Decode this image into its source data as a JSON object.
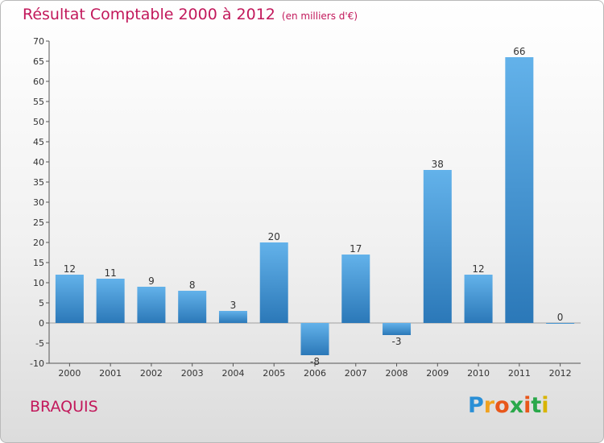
{
  "header": {
    "title": "Résultat Comptable 2000 à 2012",
    "subtitle": "(en milliers d'€)"
  },
  "footer": {
    "commune": "BRAQUIS",
    "logo": "Proxiti"
  },
  "colors": {
    "accent": "#c2185b",
    "bar_top": "#63b2ea",
    "bar_bottom": "#2b78b8"
  },
  "chart_data": {
    "type": "bar",
    "title": "Résultat Comptable 2000 à 2012",
    "xlabel": "",
    "ylabel": "",
    "categories": [
      "2000",
      "2001",
      "2002",
      "2003",
      "2004",
      "2005",
      "2006",
      "2007",
      "2008",
      "2009",
      "2010",
      "2011",
      "2012"
    ],
    "values": [
      12,
      11,
      9,
      8,
      3,
      20,
      -8,
      17,
      -3,
      38,
      12,
      66,
      0
    ],
    "ylim": [
      -10,
      70
    ],
    "yticks": [
      -10,
      -5,
      0,
      5,
      10,
      15,
      20,
      25,
      30,
      35,
      40,
      45,
      50,
      55,
      60,
      65,
      70
    ],
    "grid": false,
    "legend": "none"
  }
}
